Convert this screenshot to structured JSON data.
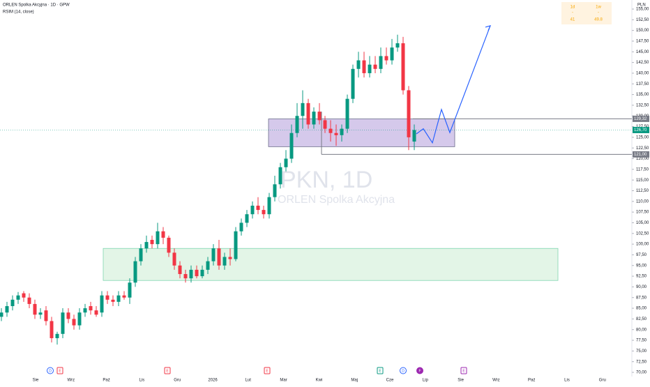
{
  "chart_data": {
    "type": "candlestick",
    "title": "ORLEN Spolka Akcyjna · 1D · GPW",
    "indicator": "RSIM (14, close)",
    "currency": "PLN",
    "watermark": "PKN, 1D",
    "watermark_sub": "ORLEN Spolka Akcyjna",
    "up_color": "#089981",
    "down_color": "#f23645",
    "open": [
      83,
      84,
      85.5,
      87,
      88.5,
      87.5,
      86,
      83.5,
      84.5,
      82,
      78,
      79,
      84,
      82.5,
      81,
      84,
      85.5,
      84.5,
      84,
      88,
      87,
      86.5,
      88,
      87.5,
      91,
      96,
      99,
      101,
      100,
      103,
      101.5,
      98,
      95,
      93,
      92,
      94,
      92.5,
      94,
      96,
      99,
      95,
      97,
      96.5,
      103,
      105,
      107,
      109,
      108,
      107,
      111,
      114,
      118,
      120,
      126,
      130,
      133,
      128,
      131,
      129,
      127,
      126,
      125.5,
      127,
      134,
      141,
      143,
      140,
      142,
      141,
      144,
      143,
      146,
      147,
      136,
      124
    ],
    "high": [
      85,
      86.5,
      88,
      88.8,
      89,
      88.5,
      87,
      85,
      85.5,
      83,
      79.5,
      85,
      85,
      83.5,
      85,
      86,
      86.5,
      85.5,
      89,
      89,
      88,
      89,
      89,
      92,
      97,
      100,
      102,
      102,
      105,
      104,
      102,
      99,
      96,
      94,
      95,
      95,
      95,
      97,
      100,
      101,
      98,
      99,
      104,
      106,
      108,
      110,
      111,
      109,
      112,
      116,
      119,
      122,
      128,
      133,
      136,
      134,
      132,
      133,
      130,
      129,
      128,
      128,
      135,
      142,
      145,
      145,
      144,
      144,
      146,
      146,
      148,
      149,
      148.5,
      137,
      128
    ],
    "low": [
      82,
      83,
      84.5,
      86,
      86.5,
      85,
      82.5,
      82.5,
      81,
      77,
      76.5,
      78,
      81.5,
      80,
      80,
      83,
      83.5,
      83,
      83,
      86,
      85.5,
      85.5,
      87,
      86,
      90,
      95,
      98,
      99,
      99,
      100,
      97,
      94,
      92,
      91,
      91,
      92,
      92,
      93,
      95,
      94,
      94,
      95,
      96,
      102,
      104,
      106,
      107,
      106,
      106,
      110,
      113,
      117,
      119,
      125,
      127,
      127,
      127,
      128,
      126,
      124,
      123,
      124,
      126,
      133,
      139,
      139,
      139,
      140,
      140,
      142,
      142,
      145,
      135,
      122,
      122
    ],
    "close": [
      84,
      85.5,
      87,
      88,
      87.5,
      86,
      83.5,
      84,
      82,
      78,
      79,
      84,
      82.5,
      81,
      84,
      85,
      84.5,
      83.5,
      88,
      87,
      86.5,
      88,
      87.5,
      91,
      96,
      99,
      100.5,
      100,
      103,
      101.5,
      98,
      95,
      93,
      92,
      94,
      92.5,
      94,
      96,
      99,
      95,
      97,
      96.5,
      103,
      105,
      107,
      109,
      108,
      107,
      111,
      114,
      118,
      120,
      126,
      130,
      133,
      128,
      131,
      129,
      127,
      126,
      125.5,
      127,
      134,
      141,
      143,
      140,
      142,
      141,
      144,
      143,
      146,
      147,
      136,
      125,
      126.7
    ],
    "ylim": [
      70,
      155
    ],
    "yticks": [
      {
        "value": 70,
        "label": "70,00"
      },
      {
        "value": 72.5,
        "label": "72,50"
      },
      {
        "value": 75,
        "label": "75,00"
      },
      {
        "value": 77.5,
        "label": "77,50"
      },
      {
        "value": 80,
        "label": "80,00"
      },
      {
        "value": 82.5,
        "label": "82,50"
      },
      {
        "value": 85,
        "label": "85,00"
      },
      {
        "value": 87.5,
        "label": "87,50"
      },
      {
        "value": 90,
        "label": "90,00"
      },
      {
        "value": 92.5,
        "label": "92,50"
      },
      {
        "value": 95,
        "label": "95,00"
      },
      {
        "value": 97.5,
        "label": "97,50"
      },
      {
        "value": 100,
        "label": "100,00"
      },
      {
        "value": 102.5,
        "label": "102,50"
      },
      {
        "value": 105,
        "label": "105,00"
      },
      {
        "value": 107.5,
        "label": "107,50"
      },
      {
        "value": 110,
        "label": "110,00"
      },
      {
        "value": 112.5,
        "label": "112,50"
      },
      {
        "value": 115,
        "label": "115,00"
      },
      {
        "value": 117.5,
        "label": "117,50"
      },
      {
        "value": 120,
        "label": "120,00"
      },
      {
        "value": 122.5,
        "label": "122,50"
      },
      {
        "value": 125,
        "label": "125,00"
      },
      {
        "value": 127.5,
        "label": "127,50"
      },
      {
        "value": 130,
        "label": "130,00"
      },
      {
        "value": 132.5,
        "label": "132,50"
      },
      {
        "value": 135,
        "label": "135,00"
      },
      {
        "value": 137.5,
        "label": "137,50"
      },
      {
        "value": 140,
        "label": "140,00"
      },
      {
        "value": 142.5,
        "label": "142,50"
      },
      {
        "value": 145,
        "label": "145,00"
      },
      {
        "value": 147.5,
        "label": "147,50"
      },
      {
        "value": 150,
        "label": "150,00"
      },
      {
        "value": 152.5,
        "label": "152,50"
      },
      {
        "value": 155,
        "label": "155,00"
      }
    ],
    "xlabels": [
      "Sie",
      "Wrz",
      "Paź",
      "Lis",
      "Gru",
      "2026",
      "Lut",
      "Mar",
      "Kwi",
      "Maj",
      "Cze",
      "Lip",
      "Sie",
      "Wrz",
      "Paź",
      "Lis",
      "Gru"
    ],
    "zones": [
      {
        "low": 122.8,
        "high": 129.3,
        "color": "#b39ddb"
      },
      {
        "low": 91.5,
        "high": 99,
        "color": "#b9e6c4"
      }
    ],
    "price_lines": [
      {
        "value": 129.32,
        "label": "129,32"
      },
      {
        "value": 121,
        "label": "121,00"
      }
    ],
    "last_price": {
      "value": 126.7,
      "label": "126,70"
    },
    "projection": [
      125.8,
      127,
      123.7,
      131.5,
      126.1,
      151.1
    ],
    "events": [
      "D",
      "E",
      "E",
      "E",
      "E",
      "D",
      "F",
      "E"
    ],
    "ratings": [
      {
        "period": "1d",
        "mark": "-",
        "value": 41
      },
      {
        "period": "1w",
        "mark": "-",
        "value": 49.8
      }
    ]
  }
}
